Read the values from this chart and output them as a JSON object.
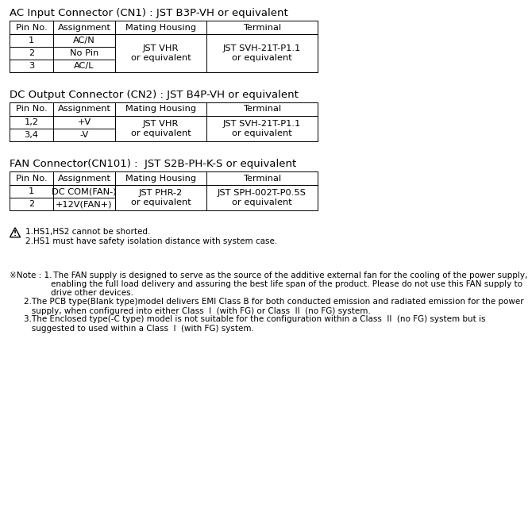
{
  "bg_color": "#ffffff",
  "title1": "AC Input Connector (CN1) : JST B3P-VH or equivalent",
  "title2": "DC Output Connector (CN2) : JST B4P-VH or equivalent",
  "title3": "FAN Connector(CN101) :  JST S2B-PH-K-S or equivalent",
  "headers": [
    "Pin No.",
    "Assignment",
    "Mating Housing",
    "Terminal"
  ],
  "t1_rows_col01": [
    [
      "1",
      "AC/N"
    ],
    [
      "2",
      "No Pin"
    ],
    [
      "3",
      "AC/L"
    ]
  ],
  "t1_mating": "JST VHR\nor equivalent",
  "t1_terminal": "JST SVH-21T-P1.1\nor equivalent",
  "t2_rows_col01": [
    [
      "1,2",
      "+V"
    ],
    [
      "3,4",
      "-V"
    ]
  ],
  "t2_mating": "JST VHR\nor equivalent",
  "t2_terminal": "JST SVH-21T-P1.1\nor equivalent",
  "t3_rows_col01": [
    [
      "1",
      "DC COM(FAN-)"
    ],
    [
      "2",
      "+12V(FAN+)"
    ]
  ],
  "t3_mating": "JST PHR-2\nor equivalent",
  "t3_terminal": "JST SPH-002T-P0.5S\nor equivalent",
  "warn1": "1.HS1,HS2 cannot be shorted.",
  "warn2": "2.HS1 must have safety isolation distance with system case.",
  "note_prefix": "※Note : 1.",
  "note1_line1": " The FAN supply is designed to serve as the source of the additive external fan for the cooling of the power supply,",
  "note1_line2": "enabling the full load delivery and assuring the best life span of the product. Please do not use this FAN supply to",
  "note1_line3": "drive other devices.",
  "note2": "2.The PCB type(Blank type)model delivers EMI Class B for both conducted emission and radiated emission for the power\n   supply, when configured into either Class  I  (with FG) or Class  II  (no FG) system.",
  "note3": "3.The Enclosed type(-C type) model is not suitable for the configuration within a Class  II  (no FG) system but is\n   suggested to used within a Class  I  (with FG) system.",
  "fs_title": 9.5,
  "fs_header": 8.2,
  "fs_cell": 8.2,
  "fs_note": 7.5
}
